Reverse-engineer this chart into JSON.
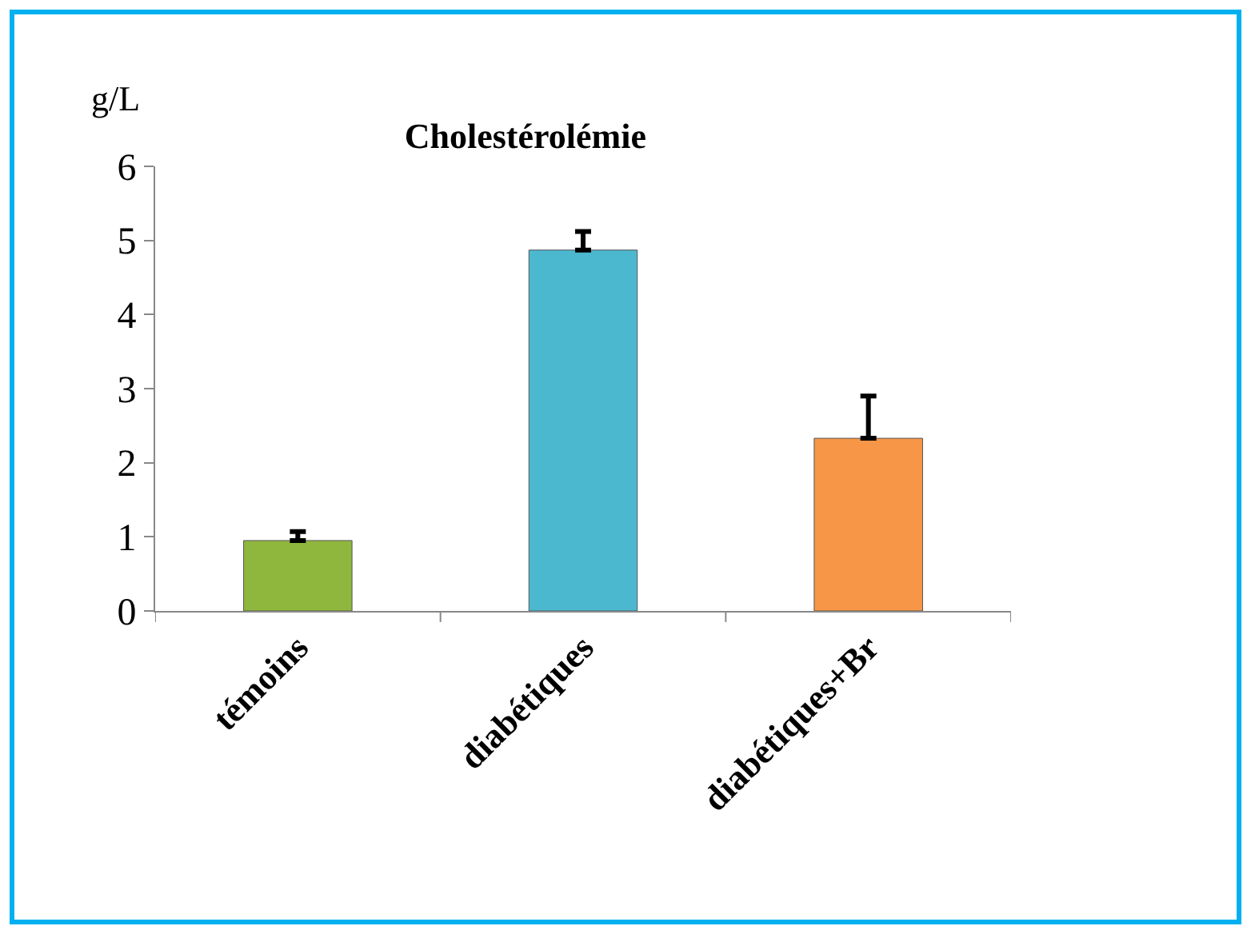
{
  "chart_data": {
    "type": "bar",
    "title": "Cholestérolémie",
    "ylabel": "g/L",
    "categories": [
      "témoins",
      "diabétiques",
      "diabétiques+Br"
    ],
    "values": [
      0.95,
      4.87,
      2.33
    ],
    "colors": [
      "#8fb73e",
      "#4bb8d0",
      "#f79646"
    ],
    "errors": [
      [
        0.95,
        1.07
      ],
      [
        4.87,
        5.12
      ],
      [
        2.33,
        2.9
      ]
    ],
    "ylim": [
      0,
      6
    ],
    "yticks": [
      0,
      1,
      2,
      3,
      4,
      5,
      6
    ],
    "grid": false
  }
}
